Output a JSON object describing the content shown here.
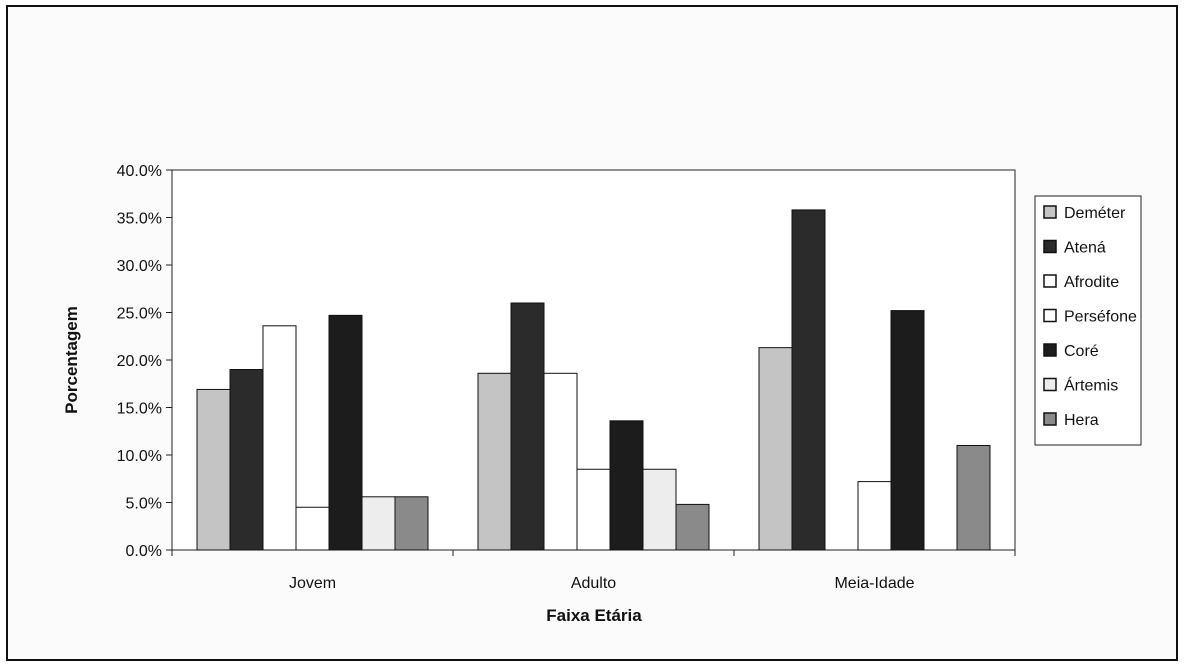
{
  "chart_data": {
    "type": "bar",
    "title": "",
    "xlabel": "Faixa Etária",
    "ylabel": "Porcentagem",
    "ylim": [
      0,
      0.4
    ],
    "yticks": [
      "0.0%",
      "5.0%",
      "10.0%",
      "15.0%",
      "20.0%",
      "25.0%",
      "30.0%",
      "35.0%",
      "40.0%"
    ],
    "categories": [
      "Jovem",
      "Adulto",
      "Meia-Idade"
    ],
    "legend_position": "right",
    "grid": false,
    "series": [
      {
        "name": "Deméter",
        "color": "#c4c4c4",
        "values": [
          0.169,
          0.186,
          0.213
        ]
      },
      {
        "name": "Atená",
        "color": "#2b2b2b",
        "values": [
          0.19,
          0.26,
          0.358
        ]
      },
      {
        "name": "Afrodite",
        "color": "#ffffff",
        "values": [
          0.236,
          0.186,
          0.0
        ]
      },
      {
        "name": "Perséfone",
        "color": "#ffffff",
        "values": [
          0.045,
          0.085,
          0.072
        ]
      },
      {
        "name": "Coré",
        "color": "#1c1c1c",
        "values": [
          0.247,
          0.136,
          0.252
        ]
      },
      {
        "name": "Ártemis",
        "color": "#ededed",
        "values": [
          0.056,
          0.085,
          0.0
        ]
      },
      {
        "name": "Hera",
        "color": "#8a8a8a",
        "values": [
          0.056,
          0.048,
          0.11
        ]
      }
    ]
  }
}
